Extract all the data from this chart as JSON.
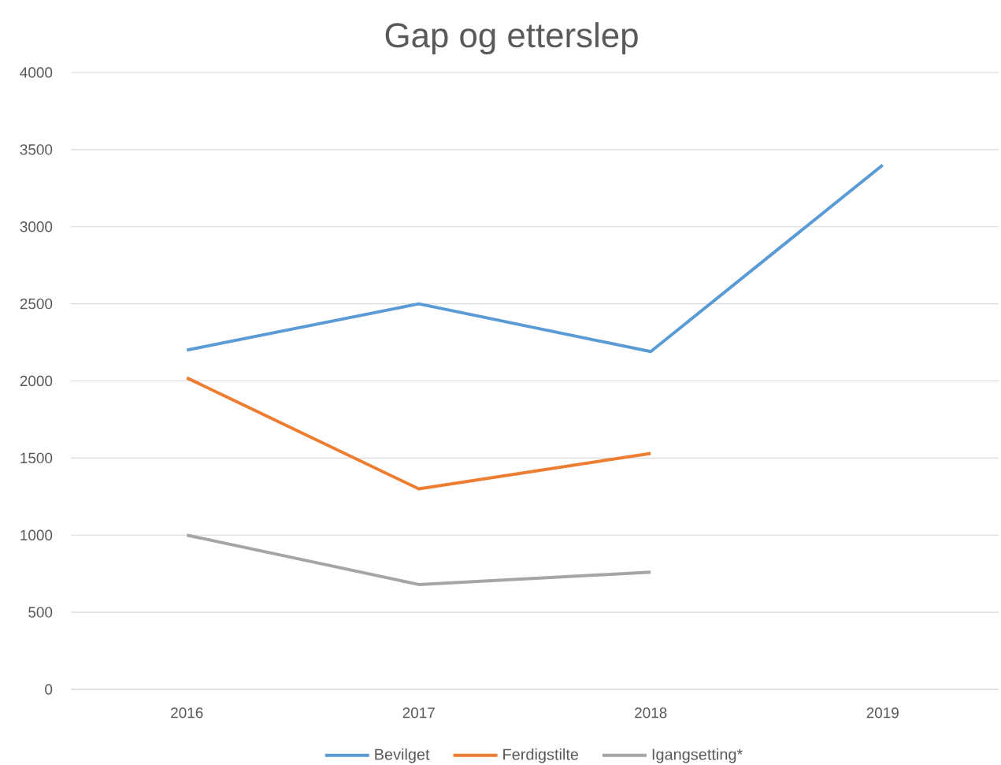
{
  "chart_data": {
    "type": "line",
    "title": "Gap og etterslep",
    "categories": [
      "2016",
      "2017",
      "2018",
      "2019"
    ],
    "series": [
      {
        "name": "Bevilget",
        "color": "#5b9bd5",
        "values": [
          2200,
          2500,
          2190,
          3400
        ]
      },
      {
        "name": "Ferdigstilte",
        "color": "#ed7d31",
        "values": [
          2020,
          1300,
          1530,
          null
        ]
      },
      {
        "name": "Igangsetting*",
        "color": "#a5a5a5",
        "values": [
          1000,
          680,
          760,
          null
        ]
      }
    ],
    "ylim": [
      0,
      4000
    ],
    "yticks": [
      0,
      500,
      1000,
      1500,
      2000,
      2500,
      3000,
      3500,
      4000
    ],
    "grid": "y",
    "legend": "bottom"
  }
}
